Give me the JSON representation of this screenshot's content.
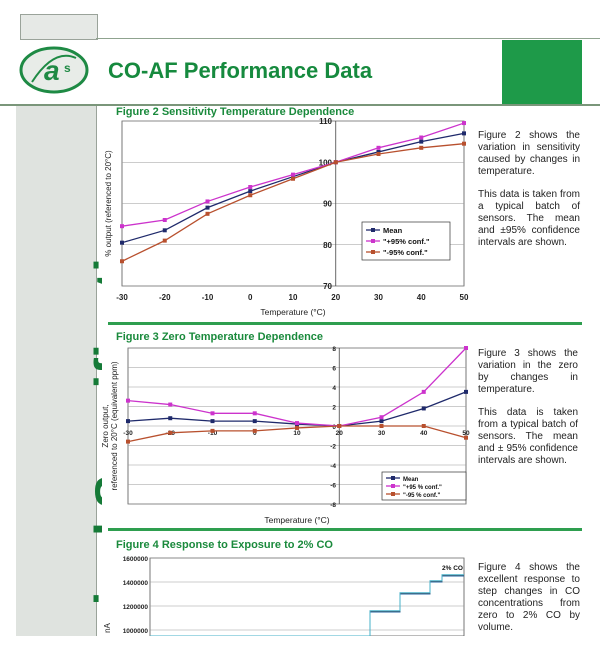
{
  "header": {
    "title": "CO-AF Performance Data",
    "logo_text": "a"
  },
  "sidebar": {
    "text": "nical Specification"
  },
  "figure2": {
    "title": "Figure 2 Sensitivity Temperature Dependence",
    "desc1": "Figure 2 shows the variation in sensitivity caused by changes in temperature.",
    "desc2": "This data is taken from a typical batch of sensors. The mean and ±95% confidence intervals are shown."
  },
  "figure3": {
    "title": "Figure 3 Zero Temperature Dependence",
    "desc1": "Figure 3 shows the variation in the zero by changes in temperature.",
    "desc2": "This data is taken from a typical batch of sensors. The mean and ± 95% confidence intervals are shown."
  },
  "figure4": {
    "title": "Figure 4 Response to Exposure to 2% CO",
    "desc1": "Figure 4 shows the excellent response to step changes in CO concentrations from zero to 2% CO by volume."
  },
  "chart_data": [
    {
      "type": "line",
      "title": "Figure 2 Sensitivity Temperature Dependence",
      "xlabel": "Temperature (°C)",
      "ylabel": "% output (referenced to 20°C)",
      "x": [
        -30,
        -20,
        -10,
        0,
        10,
        20,
        30,
        40,
        50
      ],
      "xlim": [
        -30,
        50
      ],
      "ylim": [
        70,
        110
      ],
      "xticks": [
        "-30",
        "-20",
        "-10",
        "0",
        "10",
        "20",
        "30",
        "40",
        "50"
      ],
      "yticks": [
        "70",
        "80",
        "90",
        "100",
        "110"
      ],
      "legend": [
        "Mean",
        "\"+95% conf.\"",
        "\"-95% conf.\""
      ],
      "legend_position": "bottom-right",
      "colors": [
        "#1f2a6b",
        "#cc33cc",
        "#b8502e"
      ],
      "series": [
        {
          "name": "Mean",
          "values": [
            80.5,
            83.5,
            89,
            93,
            96.5,
            100,
            102.5,
            105,
            107
          ]
        },
        {
          "name": "\"+95% conf.\"",
          "values": [
            84.5,
            86,
            90.5,
            94,
            97,
            100,
            103.5,
            106,
            109.5
          ]
        },
        {
          "name": "\"-95% conf.\"",
          "values": [
            76,
            81,
            87.5,
            92,
            96,
            100,
            102,
            103.5,
            104.5
          ]
        }
      ]
    },
    {
      "type": "line",
      "title": "Figure 3 Zero Temperature Dependence",
      "xlabel": "Temperature (°C)",
      "ylabel": "Zero output, referenced to 20°C (equivalent ppm)",
      "x": [
        -30,
        -20,
        -10,
        0,
        10,
        20,
        30,
        40,
        50
      ],
      "xlim": [
        -30,
        50
      ],
      "ylim": [
        -8,
        8
      ],
      "xticks": [
        "-30",
        "-20",
        "-10",
        "0",
        "10",
        "20",
        "30",
        "40",
        "50"
      ],
      "yticks": [
        "-8",
        "-6",
        "-4",
        "-2",
        "0",
        "2",
        "4",
        "6",
        "8"
      ],
      "legend": [
        "Mean",
        "\"+95 % conf.\"",
        "\"-95 % conf.\""
      ],
      "legend_position": "bottom-right",
      "colors": [
        "#1f2a6b",
        "#cc33cc",
        "#b8502e"
      ],
      "series": [
        {
          "name": "Mean",
          "values": [
            0.5,
            0.8,
            0.5,
            0.5,
            0.2,
            0,
            0.5,
            1.8,
            3.5
          ]
        },
        {
          "name": "\"+95 % conf.\"",
          "values": [
            2.6,
            2.2,
            1.3,
            1.3,
            0.3,
            0,
            0.9,
            3.5,
            8
          ]
        },
        {
          "name": "\"-95 % conf.\"",
          "values": [
            -1.6,
            -0.7,
            -0.5,
            -0.5,
            -0.2,
            0,
            0,
            0,
            -1.2
          ]
        }
      ]
    },
    {
      "type": "line",
      "title": "Figure 4 Response to Exposure to 2% CO",
      "ylabel": "nA",
      "ylim": [
        800000,
        1600000
      ],
      "yticks": [
        "1600000",
        "1400000",
        "1200000",
        "1000000"
      ],
      "annotations": [
        "2% CO"
      ],
      "step_levels": [
        1150000,
        1300000,
        1400000,
        1450000
      ]
    }
  ]
}
